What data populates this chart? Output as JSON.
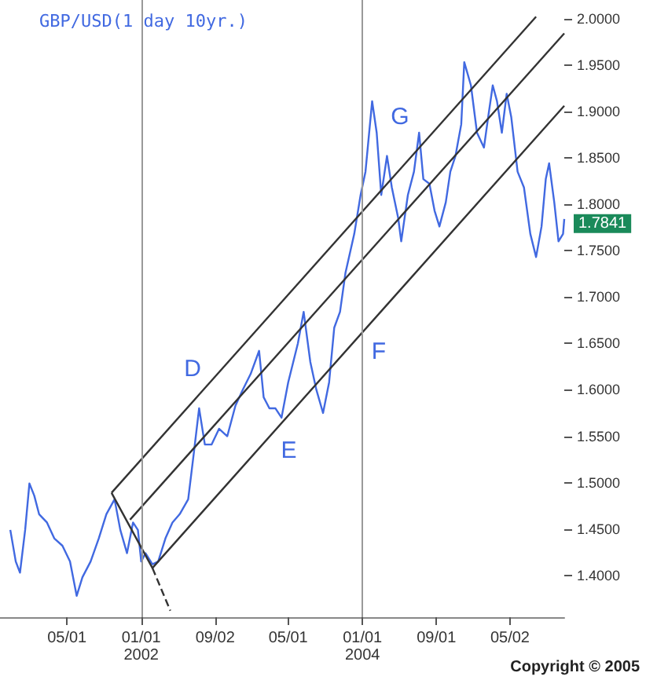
{
  "chart_data": {
    "type": "line",
    "title": "GBP/USD(1 day 10yr.)",
    "xlim": [
      "2000-09-22",
      "2005-10-28"
    ],
    "ylim": [
      1.355,
      2.02
    ],
    "xticks": [
      {
        "value": "2001-05-01",
        "label": "05/01"
      },
      {
        "value": "2002-01-01",
        "label": "01/01\n2002"
      },
      {
        "value": "2002-09-02",
        "label": "09/02"
      },
      {
        "value": "2003-05-01",
        "label": "05/01"
      },
      {
        "value": "2004-01-01",
        "label": "01/01\n2004"
      },
      {
        "value": "2004-09-01",
        "label": "09/01"
      },
      {
        "value": "2005-05-02",
        "label": "05/02"
      }
    ],
    "yticks": [
      {
        "value": 1.4,
        "label": "1.4000"
      },
      {
        "value": 1.45,
        "label": "1.4500"
      },
      {
        "value": 1.5,
        "label": "1.5000"
      },
      {
        "value": 1.55,
        "label": "1.5500"
      },
      {
        "value": 1.6,
        "label": "1.6000"
      },
      {
        "value": 1.65,
        "label": "1.6500"
      },
      {
        "value": 1.7,
        "label": "1.7000"
      },
      {
        "value": 1.75,
        "label": "1.7500"
      },
      {
        "value": 1.8,
        "label": "1.8000"
      },
      {
        "value": 1.85,
        "label": "1.8500"
      },
      {
        "value": 1.9,
        "label": "1.9000"
      },
      {
        "value": 1.95,
        "label": "1.9500"
      },
      {
        "value": 2.0,
        "label": "2.0000"
      }
    ],
    "grid": false,
    "marker": "none",
    "series": [
      {
        "color": "#4169e1",
        "x": [
          "2000-10-26",
          "2000-11-13",
          "2000-11-27",
          "2000-12-14",
          "2000-12-28",
          "2001-01-13",
          "2001-01-29",
          "2001-02-24",
          "2001-03-20",
          "2001-04-16",
          "2001-05-11",
          "2001-06-02",
          "2001-06-21",
          "2001-07-18",
          "2001-08-14",
          "2001-09-08",
          "2001-10-05",
          "2001-10-24",
          "2001-11-15",
          "2001-12-05",
          "2001-12-21",
          "2002-01-01",
          "2002-01-15",
          "2002-02-07",
          "2002-02-26",
          "2002-03-22",
          "2002-04-14",
          "2002-05-08",
          "2002-06-05",
          "2002-06-24",
          "2002-07-11",
          "2002-07-30",
          "2002-08-21",
          "2002-09-15",
          "2002-10-12",
          "2002-11-08",
          "2002-12-02",
          "2002-12-28",
          "2003-01-25",
          "2003-02-09",
          "2003-02-28",
          "2003-03-20",
          "2003-04-09",
          "2003-05-01",
          "2003-06-02",
          "2003-06-21",
          "2003-07-13",
          "2003-08-02",
          "2003-08-24",
          "2003-09-13",
          "2003-09-30",
          "2003-10-19",
          "2003-11-06",
          "2003-12-05",
          "2003-12-26",
          "2004-01-11",
          "2004-02-02",
          "2004-02-17",
          "2004-03-03",
          "2004-03-22",
          "2004-04-07",
          "2004-04-28",
          "2004-05-08",
          "2004-05-30",
          "2004-06-19",
          "2004-07-06",
          "2004-07-20",
          "2004-08-09",
          "2004-08-26",
          "2004-09-11",
          "2004-10-02",
          "2004-10-17",
          "2004-11-03",
          "2004-11-22",
          "2004-12-02",
          "2004-12-24",
          "2005-01-13",
          "2005-02-05",
          "2005-02-19",
          "2005-03-06",
          "2005-03-20",
          "2005-04-05",
          "2005-04-21",
          "2005-05-06",
          "2005-05-27",
          "2005-06-17",
          "2005-07-08",
          "2005-07-27",
          "2005-08-14",
          "2005-08-28",
          "2005-09-08",
          "2005-09-25",
          "2005-10-09",
          "2005-10-24",
          "2005-10-28"
        ],
        "values": [
          1.449,
          1.415,
          1.403,
          1.449,
          1.499,
          1.486,
          1.466,
          1.457,
          1.44,
          1.432,
          1.415,
          1.378,
          1.398,
          1.415,
          1.44,
          1.466,
          1.482,
          1.449,
          1.424,
          1.457,
          1.449,
          1.415,
          1.424,
          1.412,
          1.415,
          1.44,
          1.457,
          1.466,
          1.482,
          1.533,
          1.58,
          1.541,
          1.541,
          1.558,
          1.55,
          1.583,
          1.6,
          1.617,
          1.642,
          1.592,
          1.58,
          1.58,
          1.57,
          1.608,
          1.65,
          1.684,
          1.63,
          1.6,
          1.575,
          1.608,
          1.667,
          1.684,
          1.726,
          1.768,
          1.81,
          1.835,
          1.911,
          1.877,
          1.81,
          1.852,
          1.818,
          1.785,
          1.76,
          1.81,
          1.835,
          1.877,
          1.827,
          1.822,
          1.793,
          1.776,
          1.802,
          1.835,
          1.852,
          1.886,
          1.953,
          1.928,
          1.877,
          1.861,
          1.894,
          1.928,
          1.911,
          1.877,
          1.919,
          1.894,
          1.835,
          1.818,
          1.768,
          1.743,
          1.776,
          1.827,
          1.844,
          1.802,
          1.76,
          1.768,
          1.784
        ]
      },
      {
        "color": "#333333",
        "x": [
          "2001-09-25",
          "2005-07-27"
        ],
        "values": [
          1.489,
          2.002
        ]
      },
      {
        "color": "#333333",
        "x": [
          "2001-11-25",
          "2005-10-28"
        ],
        "values": [
          1.46,
          1.984
        ]
      },
      {
        "color": "#333333",
        "x": [
          "2001-09-25",
          "2002-02-07",
          "2005-10-28"
        ],
        "values": [
          1.489,
          1.408,
          1.906
        ]
      },
      {
        "color": "#333333",
        "line_style": "dashed",
        "x": [
          "2002-02-07",
          "2002-04-07"
        ],
        "values": [
          1.408,
          1.362
        ]
      }
    ],
    "ref_lines": [
      {
        "axis": "x",
        "value": "2002-01-01",
        "color": "#999999"
      },
      {
        "axis": "x",
        "value": "2004-01-01",
        "color": "#999999"
      }
    ],
    "annotations": [
      "D",
      "E",
      "F",
      "G",
      {
        "text": "1.7841",
        "x": "2005-10-28",
        "y": 1.7841
      },
      "Copyright © 2005"
    ]
  }
}
